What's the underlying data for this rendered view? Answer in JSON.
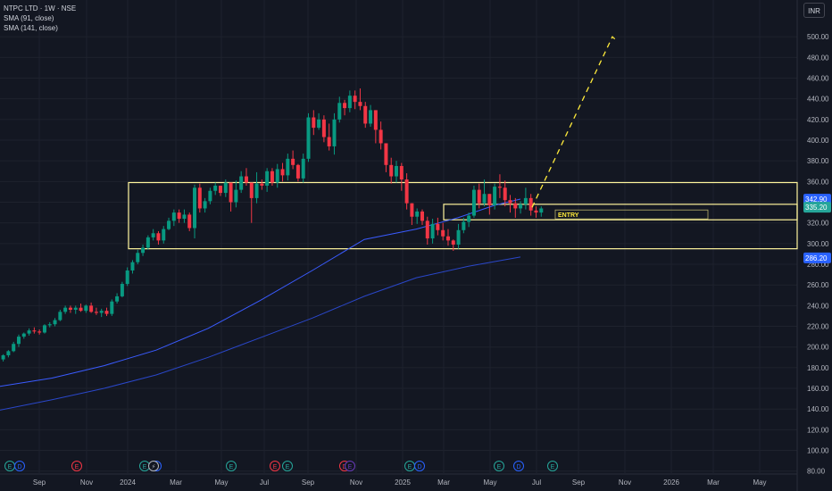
{
  "header": {
    "symbol_line": "NTPC LTD · 1W · NSE",
    "sma1_label": "SMA (91, close)",
    "sma2_label": "SMA (141, close)",
    "currency": "INR"
  },
  "colors": {
    "background": "#131722",
    "up": "#089981",
    "down": "#f23645",
    "sma": "#2962ff",
    "zone": "#fff59d",
    "projection": "#ffeb3b",
    "price_tag": "#2962ff",
    "price_tag_last": "#26a69a"
  },
  "chart_data": {
    "type": "candlestick",
    "title": "NTPC LTD · 1W · NSE",
    "y_axis": {
      "min": 80,
      "max": 500,
      "step": 20,
      "position": "right"
    },
    "x_axis_labels": [
      "Sep",
      "Nov",
      "2024",
      "Mar",
      "May",
      "Jul",
      "Sep",
      "Nov",
      "2025",
      "Mar",
      "May",
      "Jul",
      "Sep",
      "Nov",
      "2026",
      "Mar",
      "May"
    ],
    "grid": true,
    "price_labels": [
      {
        "value": 342.9,
        "text": "342.90"
      },
      {
        "value": 335.2,
        "text": "335.20"
      },
      {
        "value": 286.2,
        "text": "286.20"
      }
    ],
    "candles": [
      [
        188,
        193,
        186,
        192
      ],
      [
        192,
        197,
        190,
        196
      ],
      [
        196,
        205,
        195,
        203
      ],
      [
        203,
        212,
        200,
        210
      ],
      [
        210,
        214,
        208,
        213
      ],
      [
        213,
        218,
        211,
        216
      ],
      [
        216,
        219,
        213,
        215
      ],
      [
        215,
        217,
        212,
        214
      ],
      [
        214,
        222,
        213,
        221
      ],
      [
        221,
        224,
        219,
        222
      ],
      [
        222,
        228,
        220,
        226
      ],
      [
        226,
        236,
        225,
        234
      ],
      [
        234,
        240,
        232,
        238
      ],
      [
        238,
        240,
        233,
        236
      ],
      [
        236,
        240,
        232,
        238
      ],
      [
        238,
        242,
        234,
        235
      ],
      [
        235,
        241,
        233,
        240
      ],
      [
        240,
        243,
        233,
        234
      ],
      [
        234,
        238,
        231,
        233
      ],
      [
        233,
        237,
        229,
        235
      ],
      [
        235,
        238,
        230,
        232
      ],
      [
        232,
        246,
        230,
        244
      ],
      [
        244,
        252,
        242,
        249
      ],
      [
        249,
        263,
        248,
        261
      ],
      [
        261,
        277,
        259,
        274
      ],
      [
        274,
        284,
        271,
        282
      ],
      [
        282,
        294,
        280,
        291
      ],
      [
        291,
        299,
        288,
        296
      ],
      [
        296,
        308,
        294,
        306
      ],
      [
        306,
        314,
        303,
        310
      ],
      [
        310,
        312,
        299,
        303
      ],
      [
        303,
        317,
        300,
        314
      ],
      [
        314,
        325,
        313,
        322
      ],
      [
        322,
        333,
        317,
        330
      ],
      [
        330,
        333,
        320,
        324
      ],
      [
        324,
        333,
        320,
        328
      ],
      [
        328,
        330,
        312,
        315
      ],
      [
        315,
        357,
        305,
        354
      ],
      [
        354,
        358,
        330,
        334
      ],
      [
        334,
        344,
        330,
        341
      ],
      [
        341,
        354,
        338,
        351
      ],
      [
        351,
        359,
        347,
        356
      ],
      [
        356,
        355,
        346,
        349
      ],
      [
        349,
        362,
        345,
        359
      ],
      [
        359,
        355,
        331,
        340
      ],
      [
        340,
        361,
        335,
        352
      ],
      [
        352,
        370,
        349,
        365
      ],
      [
        365,
        373,
        356,
        359
      ],
      [
        359,
        357,
        320,
        344
      ],
      [
        344,
        369,
        339,
        358
      ],
      [
        358,
        362,
        352,
        356
      ],
      [
        356,
        373,
        350,
        370
      ],
      [
        370,
        373,
        356,
        359
      ],
      [
        359,
        377,
        354,
        372
      ],
      [
        372,
        378,
        360,
        366
      ],
      [
        366,
        387,
        361,
        382
      ],
      [
        382,
        390,
        372,
        376
      ],
      [
        376,
        377,
        360,
        363
      ],
      [
        363,
        387,
        359,
        382
      ],
      [
        382,
        426,
        379,
        422
      ],
      [
        422,
        429,
        405,
        412
      ],
      [
        412,
        426,
        410,
        420
      ],
      [
        420,
        424,
        398,
        403
      ],
      [
        403,
        416,
        390,
        394
      ],
      [
        394,
        426,
        386,
        420
      ],
      [
        420,
        442,
        417,
        436
      ],
      [
        436,
        439,
        424,
        431
      ],
      [
        431,
        448,
        427,
        443
      ],
      [
        443,
        448,
        430,
        437
      ],
      [
        437,
        450,
        429,
        433
      ],
      [
        433,
        437,
        412,
        416
      ],
      [
        416,
        434,
        413,
        429
      ],
      [
        429,
        425,
        397,
        410
      ],
      [
        410,
        418,
        391,
        397
      ],
      [
        397,
        396,
        369,
        376
      ],
      [
        376,
        383,
        358,
        365
      ],
      [
        365,
        380,
        359,
        375
      ],
      [
        375,
        378,
        351,
        362
      ],
      [
        362,
        368,
        333,
        339
      ],
      [
        339,
        338,
        318,
        326
      ],
      [
        326,
        334,
        319,
        331
      ],
      [
        331,
        333,
        318,
        322
      ],
      [
        322,
        326,
        299,
        305
      ],
      [
        305,
        324,
        300,
        319
      ],
      [
        319,
        325,
        308,
        313
      ],
      [
        313,
        320,
        303,
        307
      ],
      [
        307,
        314,
        298,
        303
      ],
      [
        303,
        304,
        293,
        299
      ],
      [
        299,
        319,
        295,
        313
      ],
      [
        313,
        325,
        310,
        321
      ],
      [
        321,
        330,
        316,
        327
      ],
      [
        327,
        356,
        325,
        352
      ],
      [
        352,
        358,
        334,
        339
      ],
      [
        339,
        362,
        336,
        348
      ],
      [
        348,
        348,
        328,
        337
      ],
      [
        337,
        358,
        333,
        355
      ],
      [
        355,
        367,
        344,
        354
      ],
      [
        354,
        361,
        336,
        342
      ],
      [
        342,
        347,
        330,
        339
      ],
      [
        339,
        344,
        325,
        334
      ],
      [
        334,
        341,
        329,
        338
      ],
      [
        338,
        354,
        333,
        344
      ],
      [
        344,
        348,
        327,
        332
      ],
      [
        332,
        336,
        325,
        330
      ],
      [
        330,
        336,
        326,
        334
      ]
    ],
    "series": [
      {
        "name": "SMA (91, close)",
        "x": [
          0,
          10,
          20,
          30,
          40,
          50,
          60,
          70,
          80,
          88,
          95,
          100
        ],
        "values": [
          162,
          170,
          182,
          197,
          218,
          245,
          274,
          304,
          314,
          325,
          337,
          343
        ]
      },
      {
        "name": "SMA (141, close)",
        "x": [
          0,
          10,
          20,
          30,
          40,
          50,
          60,
          70,
          80,
          90,
          100
        ],
        "values": [
          139,
          149,
          160,
          173,
          190,
          209,
          228,
          249,
          267,
          278,
          287
        ]
      }
    ],
    "zones": [
      {
        "from": 0,
        "to": 1,
        "low": 295,
        "high": 359
      },
      {
        "from": 0.5,
        "to": 1,
        "low": 323,
        "high": 338
      }
    ],
    "entry_label": "ENTRY",
    "projection": {
      "points": [
        [
          335,
          100
        ],
        [
          500,
          116
        ],
        [
          496,
          117
        ]
      ]
    },
    "event_markers": [
      {
        "text": "E"
      },
      {
        "text": "D"
      },
      {
        "text": "E"
      },
      {
        "text": "E"
      },
      {
        "text": "D"
      },
      {
        "text": "E"
      },
      {
        "text": "E"
      },
      {
        "text": "E"
      },
      {
        "text": "D"
      },
      {
        "text": "E"
      },
      {
        "text": "D"
      },
      {
        "text": "E"
      },
      {
        "text": "D"
      },
      {
        "text": "E"
      },
      {
        "text": "⚡"
      },
      {
        "text": "E"
      }
    ]
  }
}
